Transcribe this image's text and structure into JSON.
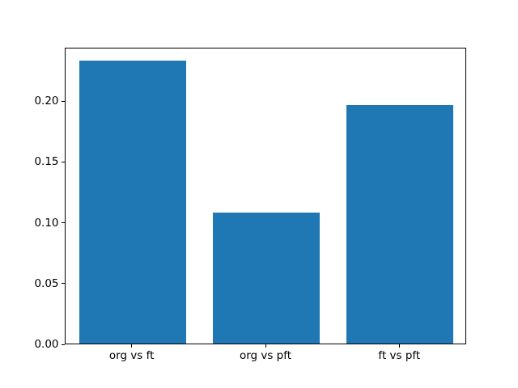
{
  "chart_data": {
    "type": "bar",
    "title": "",
    "categories": [
      "org vs ft",
      "org vs pft",
      "ft vs pft"
    ],
    "values": [
      0.233,
      0.108,
      0.196
    ],
    "xlabel": "",
    "ylabel": "",
    "ylim": [
      0,
      0.244
    ],
    "yticks": [
      0.0,
      0.05,
      0.1,
      0.15,
      0.2
    ],
    "ytick_labels": [
      "0.00",
      "0.05",
      "0.10",
      "0.15",
      "0.20"
    ],
    "bar_color": "#1f77b4",
    "background_color": "#ffffff",
    "spine_color": "#000000",
    "grid": false,
    "legend": null,
    "bar_width_ratio": 0.8
  }
}
